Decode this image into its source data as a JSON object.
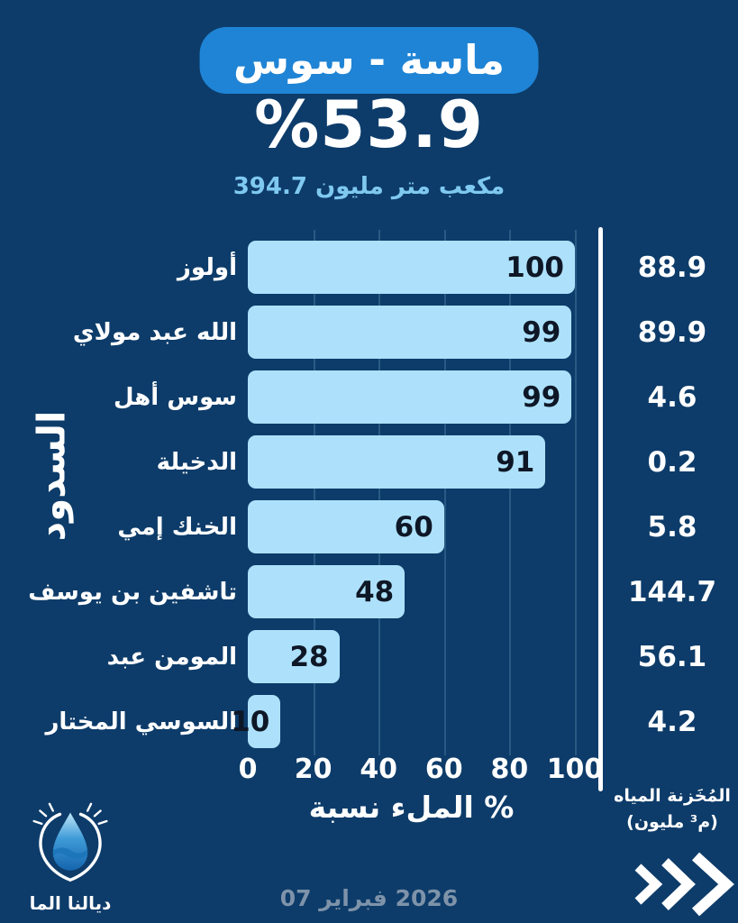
{
  "header": {
    "region_pill": "سوس - ماسة",
    "percent": "%53.9",
    "volume": "394.7 مليون متر مكعب"
  },
  "chart_data": {
    "type": "bar",
    "orientation": "horizontal",
    "title": "سوس - ماسة",
    "total_fill_percent": 53.9,
    "total_stored_volume_mcm": 394.7,
    "categories": [
      "أولوز",
      "مولاي عبد الله",
      "أهل سوس",
      "الدخيلة",
      "إمي الخنك",
      "يوسف بن تاشفين",
      "عبد المومن",
      "المختار السوسي"
    ],
    "series": [
      {
        "name": "نسبة الملء %",
        "values": [
          100,
          99,
          99,
          91,
          60,
          48,
          28,
          10
        ]
      },
      {
        "name": "المياه المُخَزنة (مليون م³)",
        "values": [
          88.9,
          89.9,
          4.6,
          0.2,
          5.8,
          144.7,
          56.1,
          4.2
        ]
      }
    ],
    "xlabel": "نسبة الملء %",
    "ylabel": "السدود",
    "x_ticks": [
      0,
      20,
      40,
      60,
      80,
      100
    ],
    "xlim": [
      0,
      100
    ],
    "grid": "vertical",
    "legend": "none"
  },
  "axis": {
    "x_title": "نسبة الملء %",
    "y_title": "السدود"
  },
  "right_column": {
    "header_line1": "المياه المُخَزنة",
    "header_line2": "(مليون م³)"
  },
  "footer": {
    "brand": "الما ديالنا",
    "date": "07 فبراير 2026"
  },
  "icons": {
    "chevrons": "triple-chevron-right-icon",
    "logo": "water-drop-logo"
  },
  "colors": {
    "background": "#0d3c6a",
    "pill": "#1f84d5",
    "bar_fill": "#ade1fb",
    "subtitle_text": "#7fc9ef",
    "bar_value_text": "#0e1726",
    "date_text": "#7e93a9",
    "text": "#ffffff"
  }
}
